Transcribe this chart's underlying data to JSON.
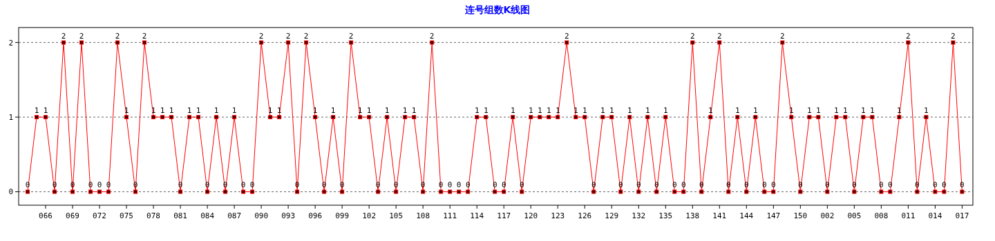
{
  "chart_data": {
    "type": "line",
    "title": "连号组数K线图",
    "categories": [
      null,
      null,
      "066",
      null,
      null,
      "069",
      null,
      null,
      "072",
      null,
      null,
      "075",
      null,
      null,
      "078",
      null,
      null,
      "081",
      null,
      null,
      "084",
      null,
      null,
      "087",
      null,
      null,
      "090",
      null,
      null,
      "093",
      null,
      null,
      "096",
      null,
      null,
      "099",
      null,
      null,
      "102",
      null,
      null,
      "105",
      null,
      null,
      "108",
      null,
      null,
      "111",
      null,
      null,
      "114",
      null,
      null,
      "117",
      null,
      null,
      "120",
      null,
      null,
      "123",
      null,
      null,
      "126",
      null,
      null,
      "129",
      null,
      null,
      "132",
      null,
      null,
      "135",
      null,
      null,
      "138",
      null,
      null,
      "141",
      null,
      null,
      "144",
      null,
      null,
      "147",
      null,
      null,
      "150",
      null,
      null,
      "002",
      null,
      null,
      "005",
      null,
      null,
      "008",
      null,
      null,
      "011",
      null,
      null,
      "014",
      null,
      null,
      "017"
    ],
    "series": [
      {
        "color": "#ff0000",
        "values": [
          0,
          1,
          1,
          0,
          2,
          0,
          2,
          0,
          0,
          0,
          2,
          1,
          0,
          2,
          1,
          1,
          1,
          0,
          1,
          1,
          0,
          1,
          0,
          1,
          0,
          0,
          2,
          1,
          1,
          2,
          0,
          2,
          1,
          0,
          1,
          0,
          2,
          1,
          1,
          0,
          1,
          0,
          1,
          1,
          0,
          2,
          0,
          0,
          0,
          0,
          1,
          1,
          0,
          0,
          1,
          0,
          1,
          1,
          1,
          1,
          2,
          1,
          1,
          0,
          1,
          1,
          0,
          1,
          0,
          1,
          0,
          1,
          0,
          0,
          2,
          0,
          1,
          2,
          0,
          1,
          0,
          1,
          0,
          0,
          2,
          1,
          0,
          1,
          1,
          0,
          1,
          1,
          0,
          1,
          1,
          0,
          0,
          1,
          2,
          0,
          1,
          0,
          0,
          2,
          0
        ]
      }
    ],
    "ylim": [
      -0.18,
      2.2
    ],
    "yticks": [
      0,
      1,
      2
    ],
    "grid": "y",
    "marker": "square",
    "line_style": "solid",
    "data_labels": true
  }
}
